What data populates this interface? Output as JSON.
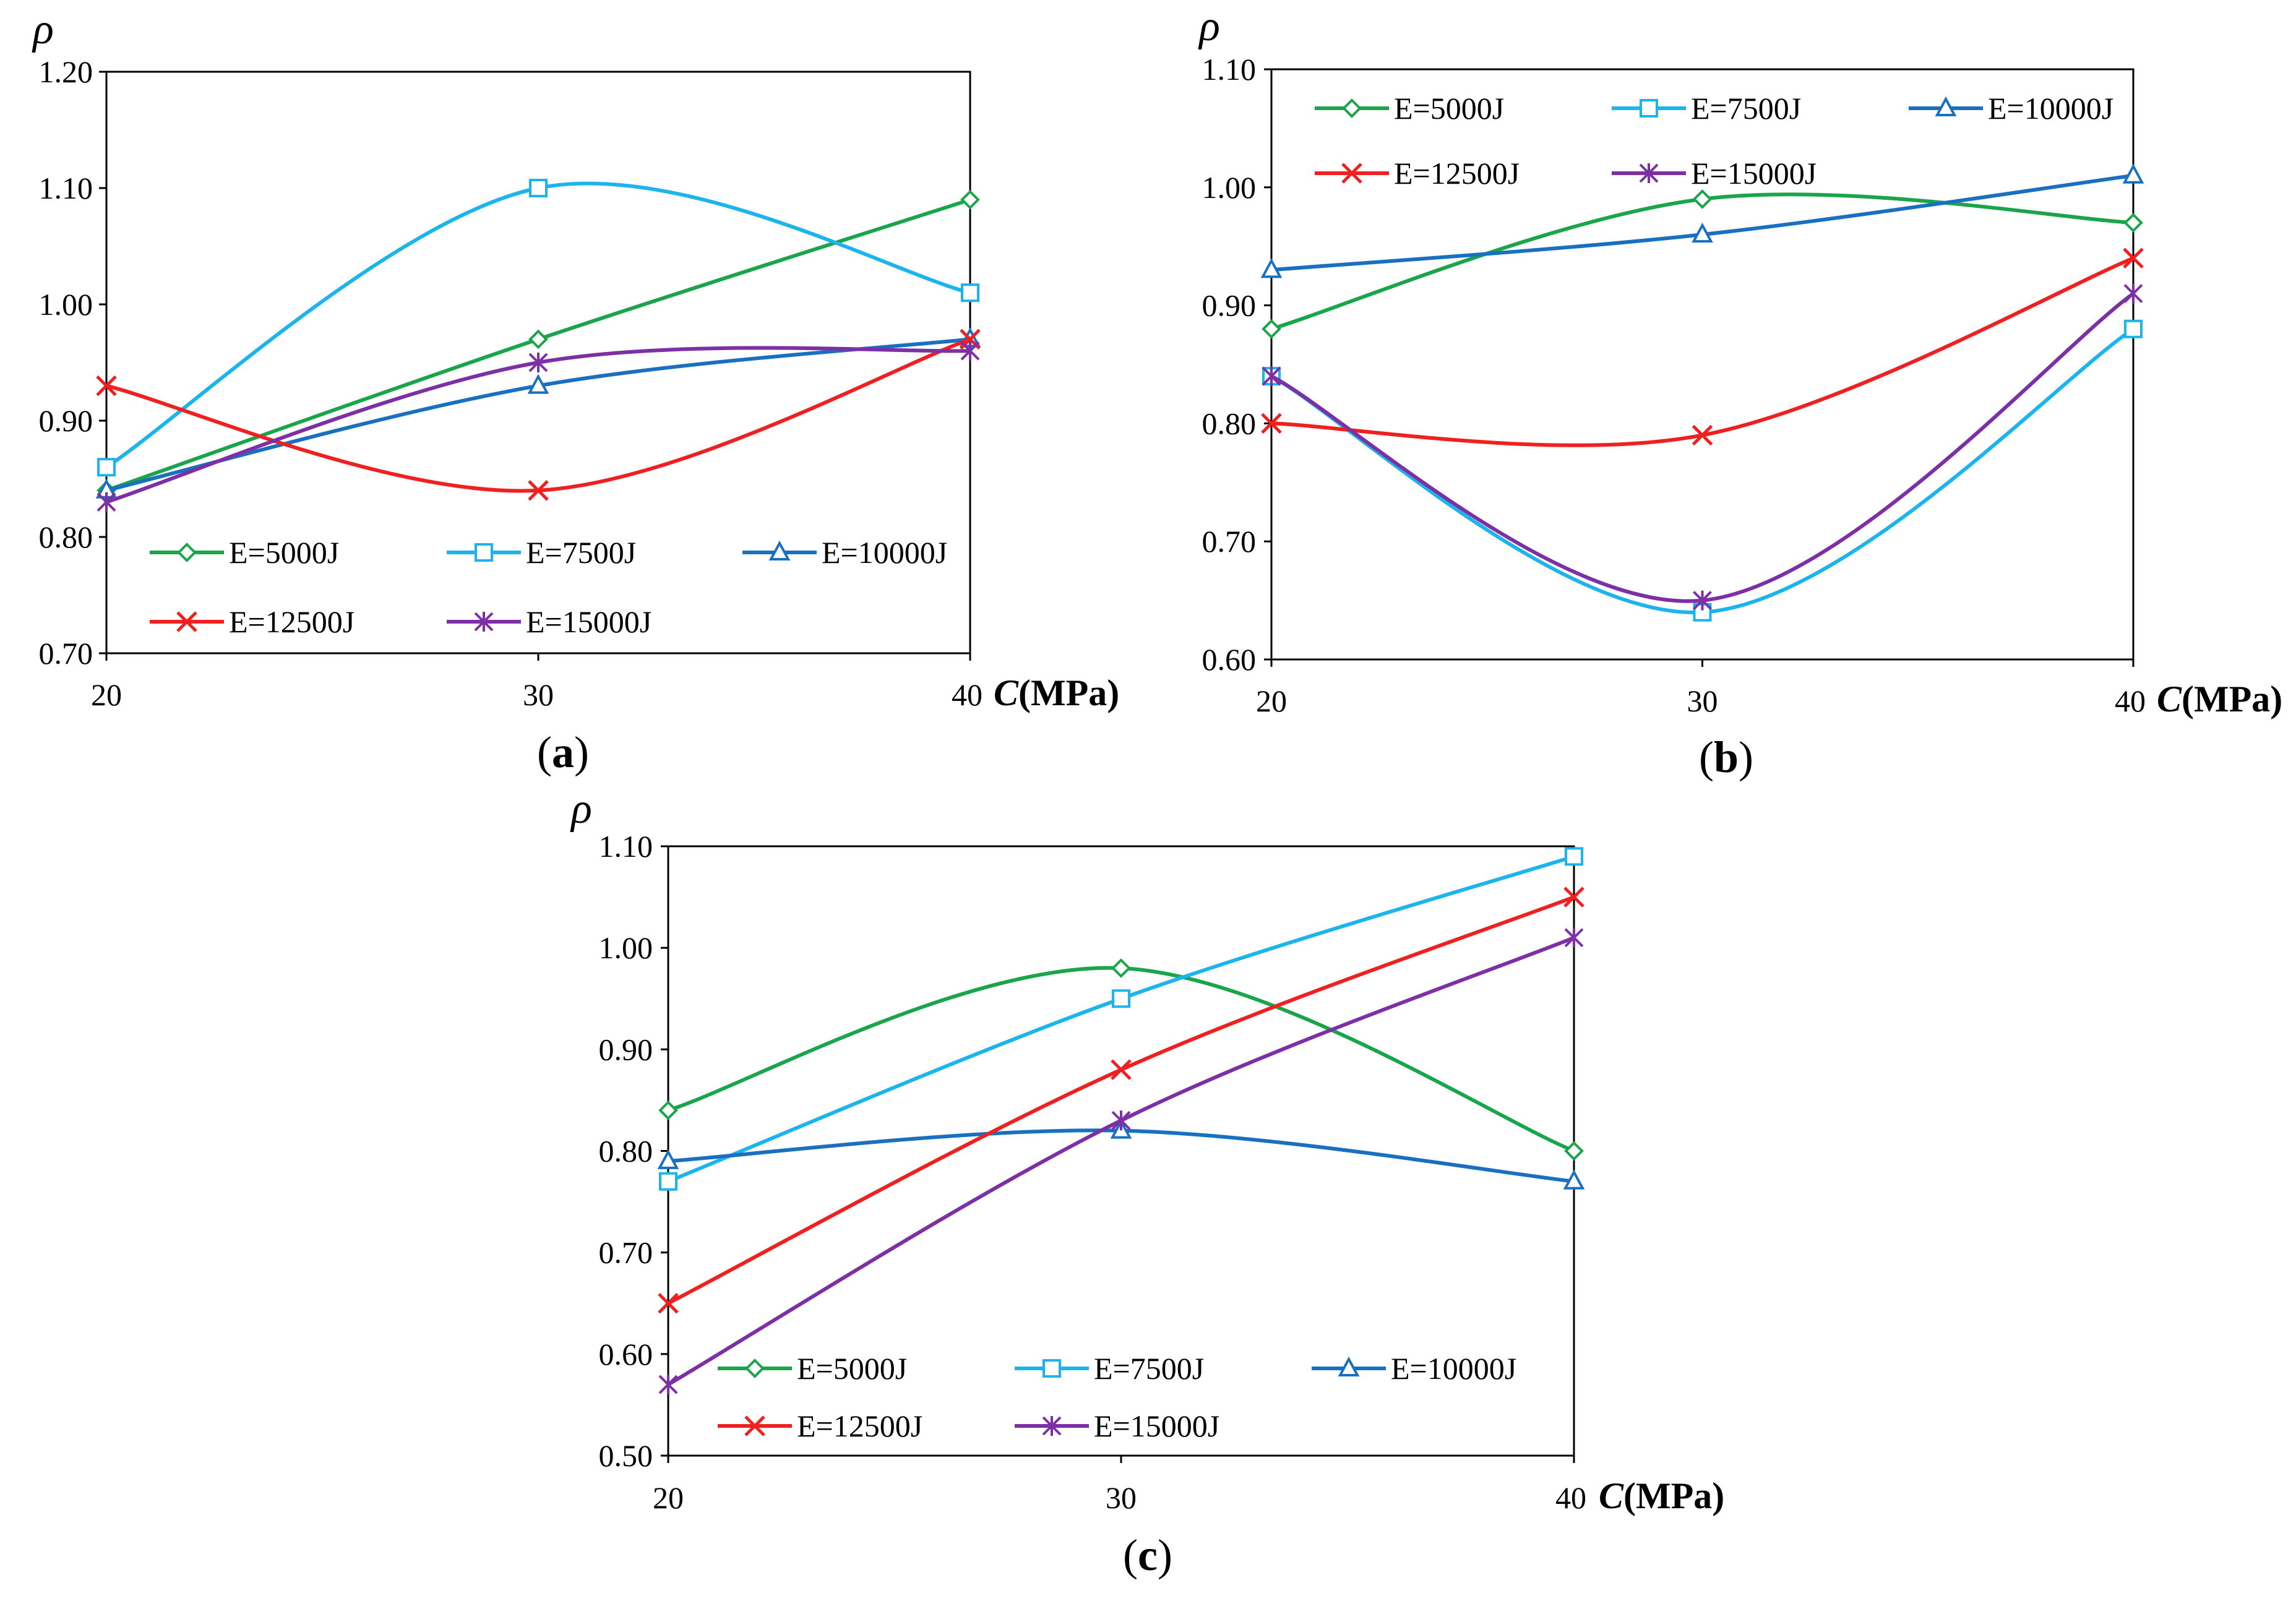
{
  "chart_data": [
    {
      "type": "line",
      "panel_label": "a",
      "ylabel": "ρ",
      "xlabel_var": "C",
      "xlabel_unit": "(MPa)",
      "x": [
        20,
        30,
        40
      ],
      "x_tick_labels": [
        "20",
        "30",
        "40"
      ],
      "ylim": [
        0.7,
        1.2
      ],
      "y_ticks": [
        0.7,
        0.8,
        0.9,
        1.0,
        1.1,
        1.2
      ],
      "y_tick_labels": [
        "0.70",
        "0.80",
        "0.90",
        "1.00",
        "1.10",
        "1.20"
      ],
      "legend_position": "bottom",
      "series": [
        {
          "name": "E=5000J",
          "values": [
            0.84,
            0.97,
            1.09
          ]
        },
        {
          "name": "E=7500J",
          "values": [
            0.86,
            1.1,
            1.01
          ]
        },
        {
          "name": "E=10000J",
          "values": [
            0.84,
            0.93,
            0.97
          ]
        },
        {
          "name": "E=12500J",
          "values": [
            0.93,
            0.84,
            0.97
          ]
        },
        {
          "name": "E=15000J",
          "values": [
            0.83,
            0.95,
            0.96
          ]
        }
      ]
    },
    {
      "type": "line",
      "panel_label": "b",
      "ylabel": "ρ",
      "xlabel_var": "C",
      "xlabel_unit": "(MPa)",
      "x": [
        20,
        30,
        40
      ],
      "x_tick_labels": [
        "20",
        "30",
        "40"
      ],
      "ylim": [
        0.6,
        1.1
      ],
      "y_ticks": [
        0.6,
        0.7,
        0.8,
        0.9,
        1.0,
        1.1
      ],
      "y_tick_labels": [
        "0.60",
        "0.70",
        "0.80",
        "0.90",
        "1.00",
        "1.10"
      ],
      "legend_position": "top",
      "series": [
        {
          "name": "E=5000J",
          "values": [
            0.88,
            0.99,
            0.97
          ]
        },
        {
          "name": "E=7500J",
          "values": [
            0.84,
            0.64,
            0.88
          ]
        },
        {
          "name": "E=10000J",
          "values": [
            0.93,
            0.96,
            1.01
          ]
        },
        {
          "name": "E=12500J",
          "values": [
            0.8,
            0.79,
            0.94
          ]
        },
        {
          "name": "E=15000J",
          "values": [
            0.84,
            0.65,
            0.91
          ]
        }
      ]
    },
    {
      "type": "line",
      "panel_label": "c",
      "ylabel": "ρ",
      "xlabel_var": "C",
      "xlabel_unit": "(MPa)",
      "x": [
        20,
        30,
        40
      ],
      "x_tick_labels": [
        "20",
        "30",
        "40"
      ],
      "ylim": [
        0.5,
        1.1
      ],
      "y_ticks": [
        0.5,
        0.6,
        0.7,
        0.8,
        0.9,
        1.0,
        1.1
      ],
      "y_tick_labels": [
        "0.50",
        "0.60",
        "0.70",
        "0.80",
        "0.90",
        "1.00",
        "1.10"
      ],
      "legend_position": "bottom",
      "series": [
        {
          "name": "E=5000J",
          "values": [
            0.84,
            0.98,
            0.8
          ]
        },
        {
          "name": "E=7500J",
          "values": [
            0.77,
            0.95,
            1.09
          ]
        },
        {
          "name": "E=10000J",
          "values": [
            0.79,
            0.82,
            0.77
          ]
        },
        {
          "name": "E=12500J",
          "values": [
            0.65,
            0.88,
            1.05
          ]
        },
        {
          "name": "E=15000J",
          "values": [
            0.57,
            0.83,
            1.01
          ]
        }
      ]
    }
  ],
  "series_styles": [
    {
      "color": "#1aa54a",
      "marker": "diamond"
    },
    {
      "color": "#1cb4ec",
      "marker": "square"
    },
    {
      "color": "#1a70c0",
      "marker": "triangle"
    },
    {
      "color": "#f02020",
      "marker": "cross"
    },
    {
      "color": "#7d2fa5",
      "marker": "star"
    }
  ]
}
